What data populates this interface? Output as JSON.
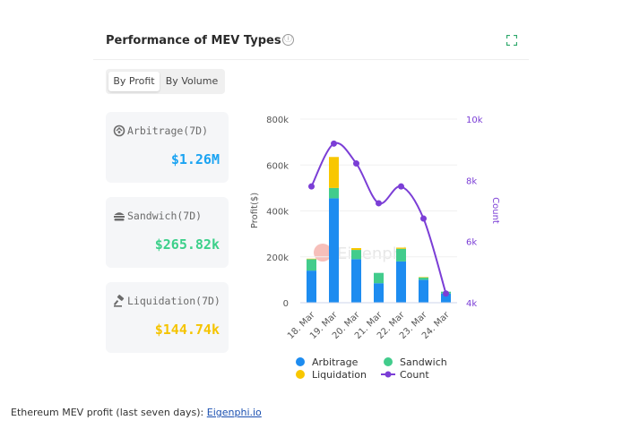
{
  "card": {
    "title": "Performance of MEV Types",
    "info_icon": "ⓘ",
    "expand_icon": "expand-icon"
  },
  "tabs": [
    {
      "label": "By Profit",
      "active": true
    },
    {
      "label": "By Volume",
      "active": false
    }
  ],
  "stats": [
    {
      "label": "Arbitrage(7D)",
      "value": "$1.26M",
      "color": "#1aa3f2",
      "icon": "arbitrage-icon"
    },
    {
      "label": "Sandwich(7D)",
      "value": "$265.82k",
      "color": "#3cd08a",
      "icon": "sandwich-icon"
    },
    {
      "label": "Liquidation(7D)",
      "value": "$144.74k",
      "color": "#f5c400",
      "icon": "gavel-icon"
    }
  ],
  "watermark": "Eigenphi",
  "caption": {
    "text": "Ethereum MEV profit (last seven days): ",
    "link": "Eigenphi.io"
  },
  "chart_data": {
    "type": "bar",
    "categories": [
      "18. Mar",
      "19. Mar",
      "20. Mar",
      "21. Mar",
      "22. Mar",
      "23. Mar",
      "24. Mar"
    ],
    "series": [
      {
        "name": "Arbitrage",
        "type": "stacked-bar",
        "axis": "left",
        "color": "#1d8cf0",
        "values": [
          140000,
          455000,
          190000,
          85000,
          180000,
          100000,
          40000
        ]
      },
      {
        "name": "Sandwich",
        "type": "stacked-bar",
        "axis": "left",
        "color": "#42cc8c",
        "values": [
          50000,
          45000,
          40000,
          45000,
          55000,
          10000,
          8000
        ]
      },
      {
        "name": "Liquidation",
        "type": "stacked-bar",
        "axis": "left",
        "color": "#f8c700",
        "values": [
          2000,
          135000,
          8000,
          0,
          5000,
          2000,
          0
        ]
      },
      {
        "name": "Count",
        "type": "line",
        "axis": "right",
        "color": "#7b3ed6",
        "values": [
          7800,
          9200,
          8550,
          7250,
          7800,
          6750,
          4300
        ]
      }
    ],
    "y_left": {
      "label": "Profit($)",
      "ticks": [
        "0",
        "200k",
        "400k",
        "600k",
        "800k"
      ],
      "range": [
        0,
        800000
      ]
    },
    "y_right": {
      "label": "Count",
      "ticks": [
        "4k",
        "6k",
        "8k",
        "10k"
      ],
      "range": [
        4000,
        10000
      ]
    },
    "legend": {
      "position": "bottom"
    }
  }
}
